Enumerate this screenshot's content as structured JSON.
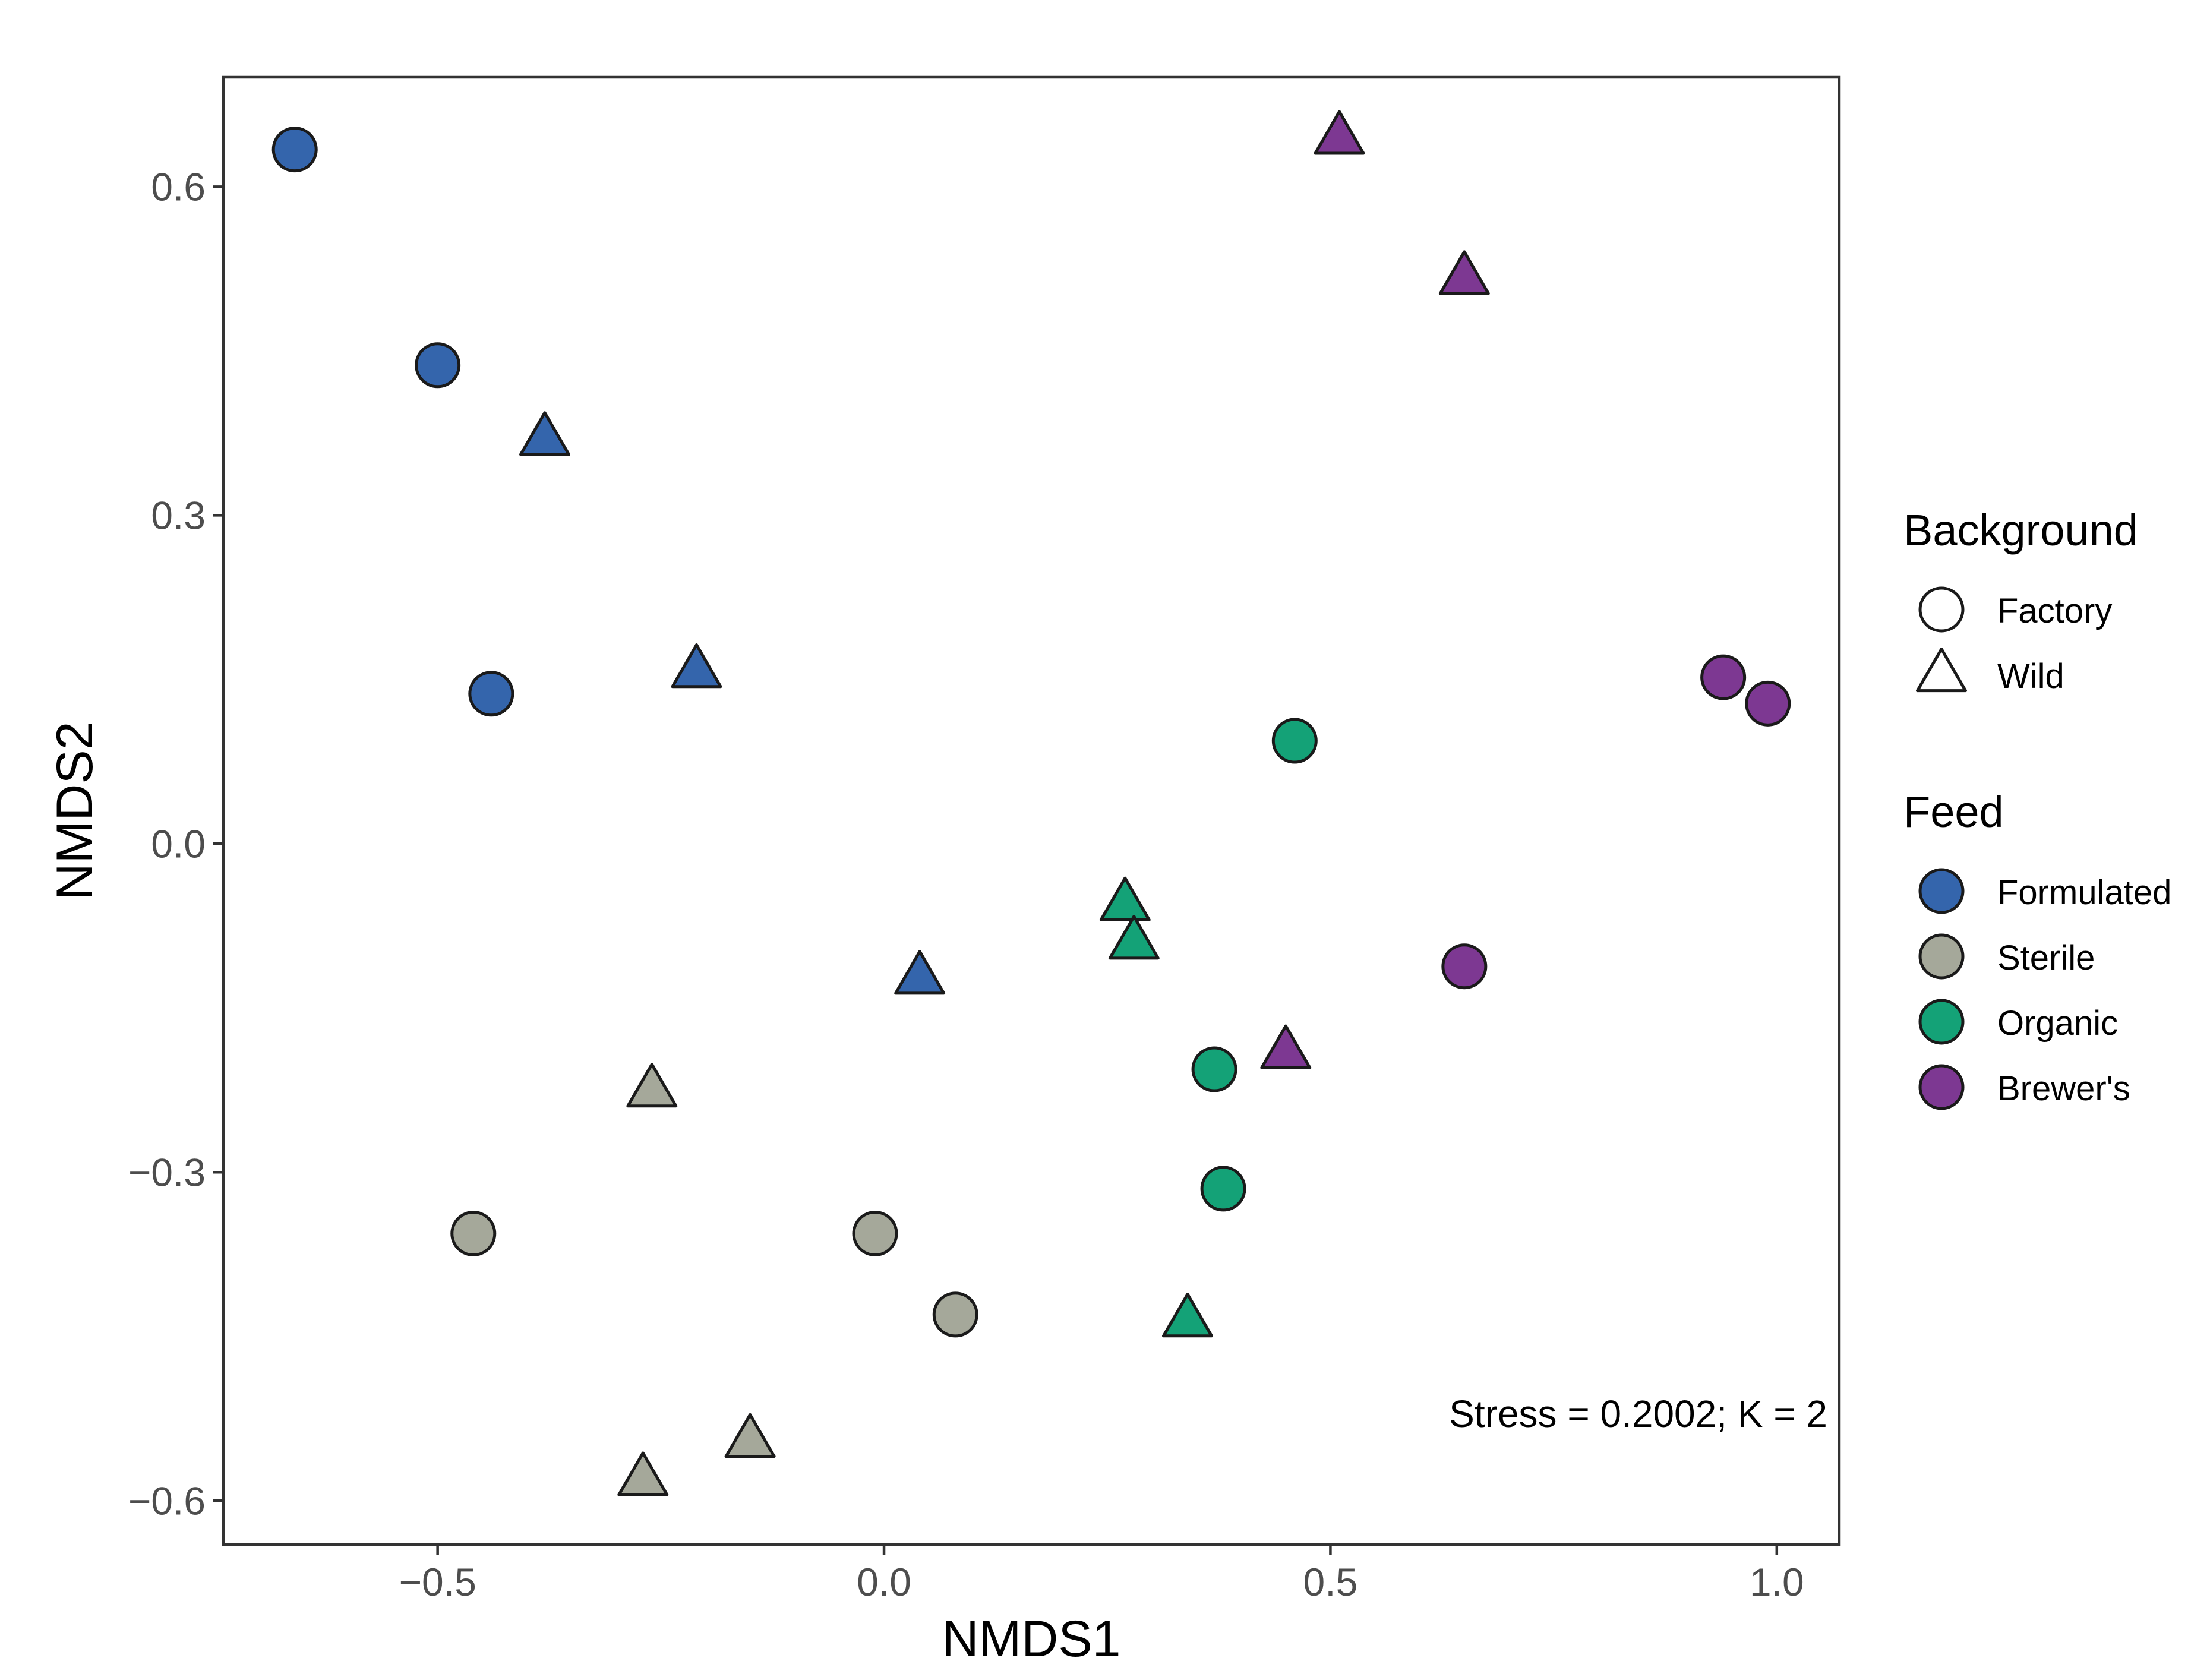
{
  "chart_data": {
    "type": "scatter",
    "title": "",
    "xlabel": "NMDS1",
    "ylabel": "NMDS2",
    "xlim": [
      -0.74,
      1.07
    ],
    "ylim": [
      -0.64,
      0.7
    ],
    "x_ticks": [
      -0.5,
      0.0,
      0.5,
      1.0
    ],
    "x_tick_labels": [
      "−0.5",
      "0.0",
      "0.5",
      "1.0"
    ],
    "y_ticks": [
      0.6,
      0.3,
      0.0,
      -0.3,
      -0.6
    ],
    "y_tick_labels": [
      "0.6",
      "0.3",
      "0.0",
      "−0.3",
      "−0.6"
    ],
    "grid": false,
    "annotation": "Stress = 0.2002; K = 2",
    "legend_position": "right",
    "legends": {
      "shape": {
        "title": "Background",
        "items": [
          {
            "label": "Factory",
            "shape": "circle"
          },
          {
            "label": "Wild",
            "shape": "triangle"
          }
        ]
      },
      "fill": {
        "title": "Feed",
        "items": [
          {
            "label": "Formulated",
            "color": "#3465ac"
          },
          {
            "label": "Sterile",
            "color": "#a5a89a"
          },
          {
            "label": "Organic",
            "color": "#14a277"
          },
          {
            "label": "Brewer's",
            "color": "#7d3892"
          }
        ]
      }
    },
    "series": [
      {
        "feed": "Formulated",
        "background": "Factory",
        "points": [
          {
            "x": -0.66,
            "y": 0.634
          },
          {
            "x": -0.5,
            "y": 0.437
          },
          {
            "x": -0.44,
            "y": 0.137
          }
        ]
      },
      {
        "feed": "Formulated",
        "background": "Wild",
        "points": [
          {
            "x": -0.38,
            "y": 0.37
          },
          {
            "x": -0.21,
            "y": 0.158
          },
          {
            "x": 0.04,
            "y": -0.122
          }
        ]
      },
      {
        "feed": "Sterile",
        "background": "Factory",
        "points": [
          {
            "x": -0.46,
            "y": -0.356
          },
          {
            "x": -0.01,
            "y": -0.356
          },
          {
            "x": 0.08,
            "y": -0.43
          }
        ]
      },
      {
        "feed": "Sterile",
        "background": "Wild",
        "points": [
          {
            "x": -0.26,
            "y": -0.225
          },
          {
            "x": -0.15,
            "y": -0.545
          },
          {
            "x": -0.27,
            "y": -0.58
          }
        ]
      },
      {
        "feed": "Organic",
        "background": "Factory",
        "points": [
          {
            "x": 0.46,
            "y": 0.094
          },
          {
            "x": 0.37,
            "y": -0.206
          },
          {
            "x": 0.38,
            "y": -0.315
          }
        ]
      },
      {
        "feed": "Organic",
        "background": "Wild",
        "points": [
          {
            "x": 0.27,
            "y": -0.055
          },
          {
            "x": 0.28,
            "y": -0.09
          },
          {
            "x": 0.34,
            "y": -0.435
          }
        ]
      },
      {
        "feed": "Brewer's",
        "background": "Factory",
        "points": [
          {
            "x": 0.94,
            "y": 0.152
          },
          {
            "x": 0.99,
            "y": 0.128
          },
          {
            "x": 0.65,
            "y": -0.112
          }
        ]
      },
      {
        "feed": "Brewer's",
        "background": "Wild",
        "points": [
          {
            "x": 0.51,
            "y": 0.645
          },
          {
            "x": 0.65,
            "y": 0.517
          },
          {
            "x": 0.45,
            "y": -0.19
          }
        ]
      }
    ]
  }
}
